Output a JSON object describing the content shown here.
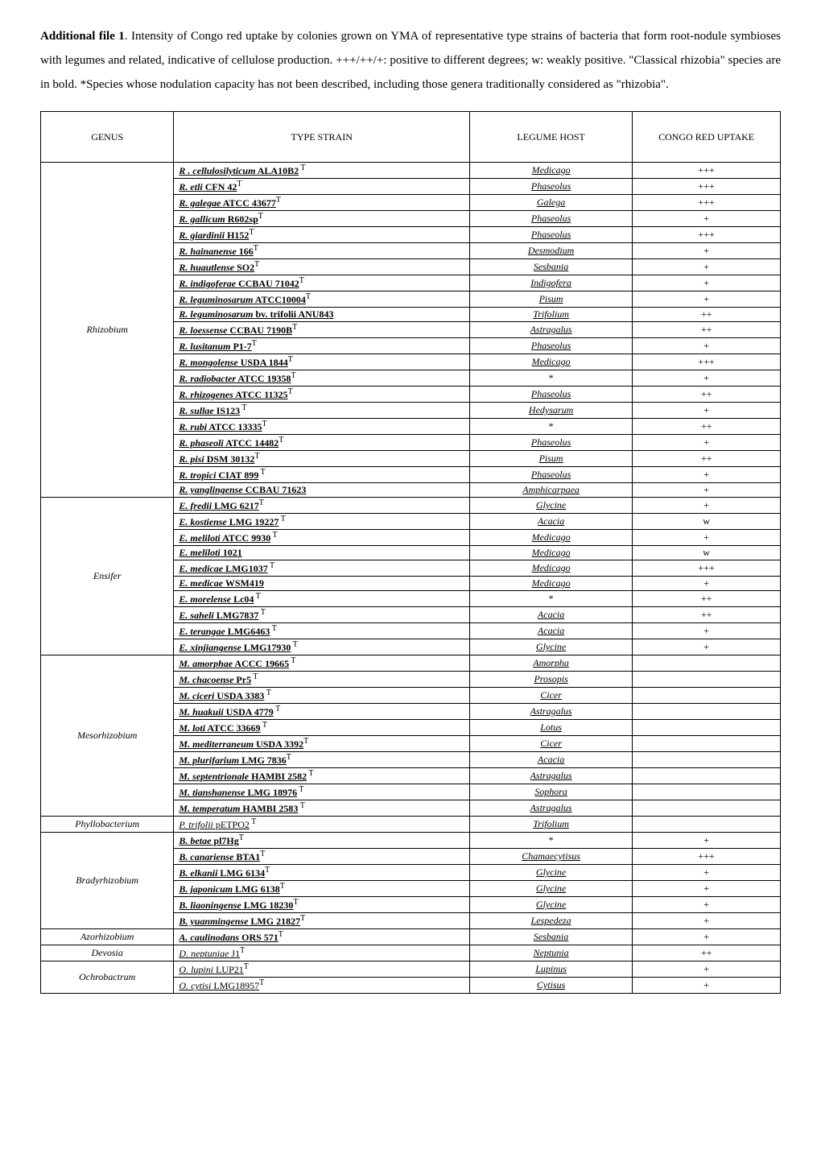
{
  "intro_html": "<b>Additional file 1</b>. Intensity of Congo red uptake by colonies grown on YMA of representative type strains of bacteria that form root-nodule symbioses with legumes and related, indicative of cellulose production. +++/++/+: positive to different degrees; w: weakly positive. \"Classical rhizobia\" species are in bold. *Species whose nodulation capacity has not been described, including those genera traditionally considered as \"rhizobia\".",
  "headers": [
    "GENUS",
    "TYPE STRAIN",
    "LEGUME HOST",
    "CONGO RED UPTAKE"
  ],
  "col_widths": [
    "18%",
    "40%",
    "22%",
    "20%"
  ],
  "groups": [
    {
      "genus": "Rhizobium",
      "rows": [
        {
          "strain": "<u><b><i>R . cellulosilyticum</i> ALA10B2</b></u><sup> T</sup>",
          "host": "<u><i>Medicago</i></u>",
          "uptake": "+++"
        },
        {
          "strain": "<u><b><i>R. etli</i> CFN 42</b></u><sup>T</sup>",
          "host": "<u><i>Phaseolus</i></u>",
          "uptake": "+++"
        },
        {
          "strain": "<u><b><i>R. galegae</i> ATCC 43677</b></u><sup>T</sup>",
          "host": "<u><i>Galega</i></u>",
          "uptake": "+++"
        },
        {
          "strain": "<u><b><i>R. gallicum</i> R602sp</b></u><sup>T</sup>",
          "host": "<u><i>Phaseolus</i></u>",
          "uptake": "+"
        },
        {
          "strain": "<u><b><i>R. giardinii</i> H152</b></u><sup>T</sup>",
          "host": "<u><i>Phaseolus</i></u>",
          "uptake": "+++"
        },
        {
          "strain": "<u><b><i>R. hainanense</i> 166</b></u><sup>T</sup>",
          "host": "<u><i>Desmodium</i></u>",
          "uptake": "+"
        },
        {
          "strain": "<u><b><i>R. huautlense</i> SO2</b></u><sup>T</sup>",
          "host": "<u><i>Sesbania</i></u>",
          "uptake": "+"
        },
        {
          "strain": "<u><b><i>R. indigoferae</i> CCBAU 71042</b></u><sup>T</sup>",
          "host": "<u><i>Indigofera</i></u>",
          "uptake": "+"
        },
        {
          "strain": "<u><b><i>R. leguminosarum</i> ATCC10004</b></u><sup>T</sup>",
          "host": "<u><i>Pisum</i></u>",
          "uptake": "+"
        },
        {
          "strain": "<u><b><i>R. leguminosarum</i> bv. trifolii ANU843</b></u>",
          "host": "<u><i>Trifolium</i></u>",
          "uptake": "++"
        },
        {
          "strain": "<u><b><i>R. loessense</i> CCBAU 7190B</b></u><sup>T</sup>",
          "host": "<u><i>Astragalus</i></u>",
          "uptake": "++"
        },
        {
          "strain": "<u><b><i>R. lusitanum</i> P1-7</b></u><sup>T</sup>",
          "host": "<u><i>Phaseolus</i></u>",
          "uptake": "+"
        },
        {
          "strain": "<u><b><i>R. mongolense</i> USDA 1844</b></u><sup>T</sup>",
          "host": "<u><i>Medicago</i></u>",
          "uptake": "+++"
        },
        {
          "strain": "<u><b><i>R. radiobacter</i> ATCC 19358</b></u><sup>T</sup>",
          "host": "*",
          "uptake": "+"
        },
        {
          "strain": "<u><b><i>R. rhizogenes</i> ATCC 11325</b></u><sup>T</sup>",
          "host": "<u><i>Phaseolus</i></u>",
          "uptake": "++"
        },
        {
          "strain": "<u><b><i>R. sullae</i> IS123</b></u><sup> T</sup>",
          "host": "<u><i>Hedysarum</i></u>",
          "uptake": "+"
        },
        {
          "strain": "<u><b><i>R. rubi</i> ATCC 13335</b></u><sup>T</sup>",
          "host": "*",
          "uptake": "++"
        },
        {
          "strain": "<u><b><i>R. phaseoli</i> ATCC 14482</b></u><sup>T</sup>",
          "host": "<u><i>Phaseolus</i></u>",
          "uptake": "+"
        },
        {
          "strain": "<u><b><i>R. pisi</i> DSM 30132</b></u><sup>T</sup>",
          "host": "<u><i>Pisum</i></u>",
          "uptake": "++"
        },
        {
          "strain": "<u><b><i>R. tropici</i> CIAT 899</b></u><sup> T</sup>",
          "host": "<u><i>Phaseolus</i></u>",
          "uptake": "+"
        },
        {
          "strain": "<u><b><i>R. yanglingense</i> CCBAU 71623</b></u>",
          "host": "<u><i>Amphicarpaea</i></u>",
          "uptake": "+"
        }
      ]
    },
    {
      "genus": "Ensifer",
      "rows": [
        {
          "strain": "<u><b><i>E. fredii</i> LMG 6217</b></u><sup>T</sup>",
          "host": "<u><i>Glycine</i></u>",
          "uptake": "+"
        },
        {
          "strain": "<u><b><i>E. kostiense</i> LMG 19227</b></u><sup> T</sup>",
          "host": "<u><i>Acacia</i></u>",
          "uptake": "w"
        },
        {
          "strain": "<u><b><i>E. meliloti</i> ATCC 9930</b></u><sup> T</sup>",
          "host": "<u><i>Medicago</i></u>",
          "uptake": "+"
        },
        {
          "strain": "<u><b><i>E. meliloti</i> 1021</b></u>",
          "host": "<u><i>Medicago</i></u>",
          "uptake": "w"
        },
        {
          "strain": "<u><b><i>E. medicae</i> LMG1037</b></u><sup> T</sup>",
          "host": "<u><i>Medicago</i></u>",
          "uptake": "+++"
        },
        {
          "strain": "<u><b><i>E. medicae</i> WSM419</b></u>",
          "host": "<u><i>Medicago</i></u>",
          "uptake": "+"
        },
        {
          "strain": "<u><b><i>E. morelense</i> Lc04</b></u><sup> T</sup>",
          "host": "*",
          "uptake": "++"
        },
        {
          "strain": "<u><b><i>E. saheli</i> LMG7837</b></u><sup> T</sup>",
          "host": "<u><i>Acacia</i></u>",
          "uptake": "++"
        },
        {
          "strain": "<u><b><i>E. terangae</i> LMG6463</b></u><sup> T</sup>",
          "host": "<u><i>Acacia</i></u>",
          "uptake": "+"
        },
        {
          "strain": "<u><b><i>E. xinjiangense</i> LMG17930</b></u><sup> T</sup>",
          "host": "<u><i>Glycine</i></u>",
          "uptake": "+"
        }
      ]
    },
    {
      "genus": "Mesorhizobium",
      "rows": [
        {
          "strain": "<u><b><i>M. amorphae</i> ACCC 19665</b></u><sup> T</sup>",
          "host": "<u><i>Amorpha</i></u>",
          "uptake": ""
        },
        {
          "strain": "<u><b><i>M. chacoense</i> Pr5</b></u><sup> T</sup>",
          "host": "<u><i>Prosopis</i></u>",
          "uptake": ""
        },
        {
          "strain": "<u><b><i>M. ciceri</i> USDA 3383</b></u><sup> T</sup>",
          "host": "<u><i>Cicer</i></u>",
          "uptake": ""
        },
        {
          "strain": "<u><b><i>M. huakuii</i> USDA 4779</b></u><sup> T</sup>",
          "host": "<u><i>Astragalus</i></u>",
          "uptake": ""
        },
        {
          "strain": "<u><b><i>M. loti</i> ATCC 33669</b></u><sup> T</sup>",
          "host": "<u><i>Lotus</i></u>",
          "uptake": ""
        },
        {
          "strain": "<u><b><i>M. mediterraneum</i> USDA 3392</b></u><sup>T</sup>",
          "host": "<u><i>Cicer</i></u>",
          "uptake": ""
        },
        {
          "strain": "<u><b><i>M. plurifarium</i> LMG 7836</b></u><sup>T</sup>",
          "host": "<u><i>Acacia</i></u>",
          "uptake": ""
        },
        {
          "strain": "<u><b><i>M. septentrionale</i> HAMBI 2582</b></u><sup> T</sup>",
          "host": "<u><i>Astragalus</i></u>",
          "uptake": ""
        },
        {
          "strain": "<u><b><i>M. tianshanense</i> LMG 18976</b></u><sup> T</sup>",
          "host": "<u><i>Sophora</i></u>",
          "uptake": ""
        },
        {
          "strain": "<u><b><i>M. temperatum</i> HAMBI 2583</b></u><sup> T</sup>",
          "host": "<u><i>Astragalus</i></u>",
          "uptake": ""
        }
      ]
    },
    {
      "genus": "Phyllobacterium",
      "rows": [
        {
          "strain": "<u><i>P. trifolii</i> pETPO2</u><sup> T</sup>",
          "host": "<u><i>Trifolium</i></u>",
          "uptake": ""
        }
      ]
    },
    {
      "genus": "Bradyrhizobium",
      "rows": [
        {
          "strain": "<u><b><i>B. betae</i> pl7Hg</b></u><sup>T</sup>",
          "host": "*",
          "uptake": "+"
        },
        {
          "strain": "<u><b><i>B. canariense</i> BTA1</b></u><sup>T</sup>",
          "host": "<u><i>Chamaecytisus</i></u>",
          "uptake": "+++"
        },
        {
          "strain": "<u><b><i>B. elkanii</i> LMG 6134</b></u><sup>T</sup>",
          "host": "<u><i>Glycine</i></u>",
          "uptake": "+"
        },
        {
          "strain": "<u><b><i>B. japonicum</i> LMG 6138</b></u><sup>T</sup>",
          "host": "<u><i>Glycine</i></u>",
          "uptake": "+"
        },
        {
          "strain": "<u><b><i>B. liaoningense</i> LMG 18230</b></u><sup>T</sup>",
          "host": "<u><i>Glycine</i></u>",
          "uptake": "+"
        },
        {
          "strain": "<u><b><i>B. yuanmingense</i> LMG 21827</b></u><sup>T</sup>",
          "host": "<u><i>Lespedeza</i></u>",
          "uptake": "+"
        }
      ]
    },
    {
      "genus": "Azorhizobium",
      "rows": [
        {
          "strain": "<u><b><i>A. caulinodans</i> ORS 571</b></u><sup>T</sup>",
          "host": "<u><i>Sesbania</i></u>",
          "uptake": "+"
        }
      ]
    },
    {
      "genus": "Devosia",
      "rows": [
        {
          "strain": "<u><i>D. neptuniae</i> J1</u><sup>T</sup>",
          "host": "<u><i>Neptunia</i></u>",
          "uptake": "++"
        }
      ]
    },
    {
      "genus": "Ochrobactrum",
      "rows": [
        {
          "strain": "<u><i>O. lupini</i> LUP21</u><sup>T</sup>",
          "host": "<u><i>Lupinus</i></u>",
          "uptake": "+"
        },
        {
          "strain": "<u><i>O. cytisi</i> LMG18957</u><sup>T</sup>",
          "host": "<u><i>Cytisus</i></u>",
          "uptake": "+"
        }
      ]
    }
  ]
}
